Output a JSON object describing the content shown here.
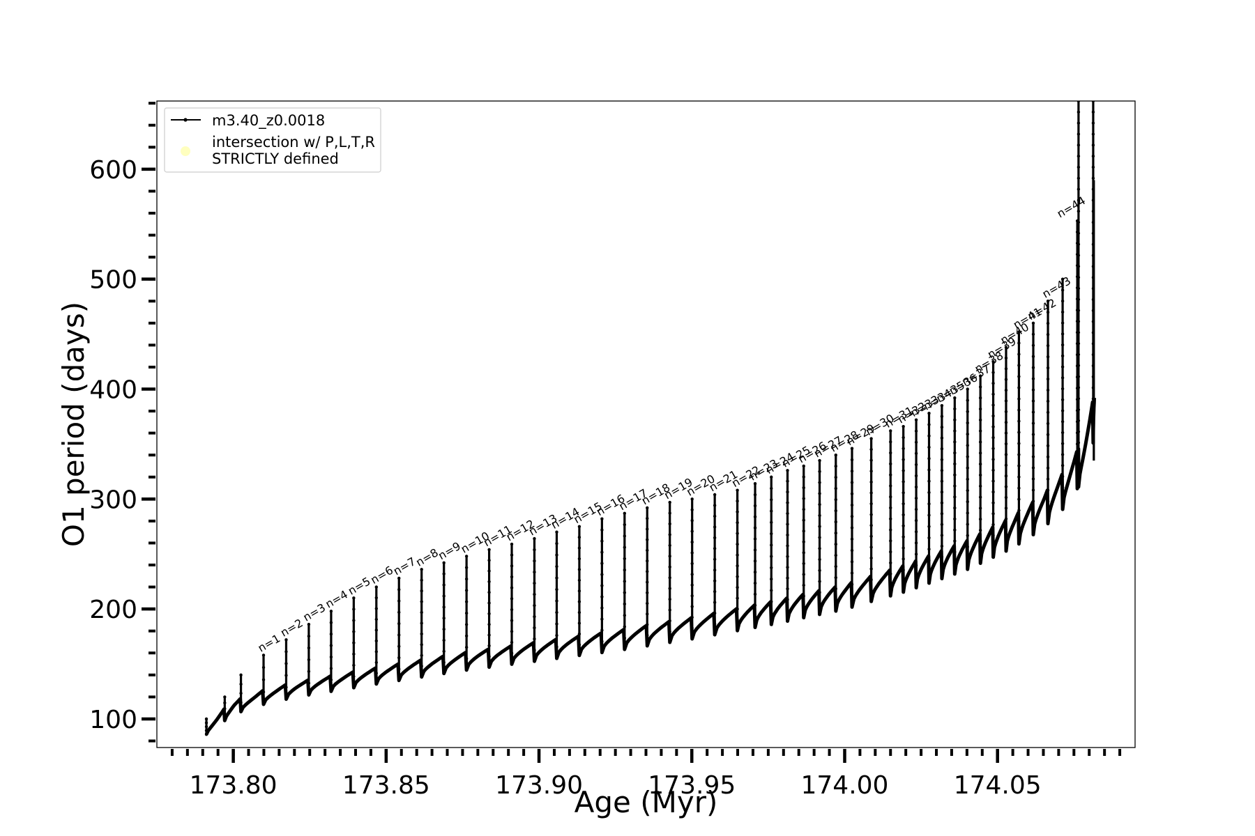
{
  "chart_data": {
    "type": "line",
    "xlabel": "Age (Myr)",
    "ylabel": "O1 period (days)",
    "xlim": [
      173.775,
      174.095
    ],
    "ylim": [
      74,
      662
    ],
    "x_ticks": [
      173.8,
      173.85,
      173.9,
      173.95,
      174.0,
      174.05
    ],
    "x_tick_labels": [
      "173.80",
      "173.85",
      "173.90",
      "173.95",
      "174.00",
      "174.05"
    ],
    "x_minor_step": 0.005,
    "y_ticks": [
      100,
      200,
      300,
      400,
      500,
      600
    ],
    "y_tick_labels": [
      "100",
      "200",
      "300",
      "400",
      "500",
      "600"
    ],
    "y_minor_step": 20,
    "grid": false,
    "legend": {
      "location": "upper-left",
      "entries": [
        {
          "label": "m3.40_z0.0018",
          "marker": "line-with-dots",
          "color": "#000000"
        },
        {
          "label": "intersection w/ P,L,T,R\nSTRICTLY defined",
          "marker": "circle",
          "color": "#ffffbf"
        }
      ]
    },
    "series": [
      {
        "name": "m3.40_z0.0018",
        "color": "#000000",
        "description_of_shape": "thermal-pulse sawtooth: baseline rising from ~90 d to ~390 d, with sharp vertical spikes at each pulse",
        "baseline_points": [
          [
            173.791,
            95
          ],
          [
            173.8,
            116
          ],
          [
            173.81,
            126
          ],
          [
            173.82,
            133
          ],
          [
            173.83,
            138
          ],
          [
            173.85,
            148
          ],
          [
            173.875,
            160
          ],
          [
            173.9,
            170
          ],
          [
            173.925,
            180
          ],
          [
            173.95,
            192
          ],
          [
            173.975,
            206
          ],
          [
            174.0,
            222
          ],
          [
            174.02,
            240
          ],
          [
            174.04,
            262
          ],
          [
            174.055,
            284
          ],
          [
            174.065,
            304
          ],
          [
            174.072,
            325
          ],
          [
            174.077,
            348
          ],
          [
            174.0815,
            392
          ]
        ],
        "spike_ages": [
          173.7912,
          173.7972,
          173.8025,
          173.8099,
          173.8173,
          173.8247,
          173.832,
          173.8394,
          173.8468,
          173.8542,
          173.8616,
          173.8689,
          173.8763,
          173.8837,
          173.8911,
          173.8985,
          173.9058,
          173.9132,
          173.9206,
          173.928,
          173.9354,
          173.9428,
          173.9501,
          173.9575,
          173.9649,
          173.9707,
          173.976,
          173.9813,
          173.9866,
          173.9918,
          173.9971,
          174.0024,
          174.0087,
          174.015,
          174.0192,
          174.0234,
          174.0276,
          174.0318,
          174.036,
          174.0402,
          174.0444,
          174.0486,
          174.0528,
          174.057,
          174.0617,
          174.0665,
          174.0713,
          174.0761,
          174.0765,
          174.0813
        ],
        "spike_peaks": [
          100,
          120,
          140,
          158,
          172,
          186,
          198,
          210,
          220,
          228,
          236,
          242,
          248,
          254,
          259,
          264,
          270,
          275,
          282,
          287,
          292,
          297,
          300,
          304,
          308,
          314,
          320,
          326,
          330,
          335,
          340,
          346,
          355,
          362,
          366,
          372,
          378,
          385,
          392,
          400,
          412,
          425,
          438,
          452,
          460,
          480,
          500,
          553,
          662,
          662
        ]
      }
    ],
    "annotations": [
      {
        "text": "n=1",
        "x": 173.8099,
        "y": 158
      },
      {
        "text": "n=2",
        "x": 173.8173,
        "y": 172
      },
      {
        "text": "n=3",
        "x": 173.8247,
        "y": 186
      },
      {
        "text": "n=4",
        "x": 173.832,
        "y": 198
      },
      {
        "text": "n=5",
        "x": 173.8394,
        "y": 210
      },
      {
        "text": "n=6",
        "x": 173.8468,
        "y": 220
      },
      {
        "text": "n=7",
        "x": 173.8542,
        "y": 228
      },
      {
        "text": "n=8",
        "x": 173.8616,
        "y": 236
      },
      {
        "text": "n=9",
        "x": 173.8689,
        "y": 242
      },
      {
        "text": "n=10",
        "x": 173.8763,
        "y": 248
      },
      {
        "text": "n=11",
        "x": 173.8837,
        "y": 254
      },
      {
        "text": "n=12",
        "x": 173.8911,
        "y": 259
      },
      {
        "text": "n=13",
        "x": 173.8985,
        "y": 264
      },
      {
        "text": "n=14",
        "x": 173.9058,
        "y": 270
      },
      {
        "text": "n=15",
        "x": 173.9132,
        "y": 275
      },
      {
        "text": "n=16",
        "x": 173.9206,
        "y": 282
      },
      {
        "text": "n=17",
        "x": 173.928,
        "y": 287
      },
      {
        "text": "n=18",
        "x": 173.9354,
        "y": 292
      },
      {
        "text": "n=19",
        "x": 173.9428,
        "y": 297
      },
      {
        "text": "n=20",
        "x": 173.9501,
        "y": 300
      },
      {
        "text": "n=21",
        "x": 173.9575,
        "y": 304
      },
      {
        "text": "n=22",
        "x": 173.9649,
        "y": 308
      },
      {
        "text": "n=23",
        "x": 173.9707,
        "y": 314
      },
      {
        "text": "n=24",
        "x": 173.976,
        "y": 320
      },
      {
        "text": "n=25",
        "x": 173.9813,
        "y": 326
      },
      {
        "text": "n=26",
        "x": 173.9866,
        "y": 330
      },
      {
        "text": "n=27",
        "x": 173.9918,
        "y": 335
      },
      {
        "text": "n=28",
        "x": 173.9971,
        "y": 340
      },
      {
        "text": "n=29",
        "x": 174.0024,
        "y": 346
      },
      {
        "text": "n=30",
        "x": 174.0087,
        "y": 355
      },
      {
        "text": "n=31",
        "x": 174.015,
        "y": 362
      },
      {
        "text": "n=32",
        "x": 174.0192,
        "y": 366
      },
      {
        "text": "n=33",
        "x": 174.0234,
        "y": 372
      },
      {
        "text": "n=34",
        "x": 174.0276,
        "y": 378
      },
      {
        "text": "n=35",
        "x": 174.0318,
        "y": 385
      },
      {
        "text": "n=36",
        "x": 174.036,
        "y": 392
      },
      {
        "text": "n=37",
        "x": 174.0402,
        "y": 400
      },
      {
        "text": "n=38",
        "x": 174.0444,
        "y": 412
      },
      {
        "text": "n=39",
        "x": 174.0486,
        "y": 425
      },
      {
        "text": "n=40",
        "x": 174.0528,
        "y": 438
      },
      {
        "text": "n=41",
        "x": 174.057,
        "y": 452
      },
      {
        "text": "n=42",
        "x": 174.0617,
        "y": 460
      },
      {
        "text": "n=43",
        "x": 174.0665,
        "y": 480
      },
      {
        "text": "n=44",
        "x": 174.0713,
        "y": 553
      }
    ]
  }
}
